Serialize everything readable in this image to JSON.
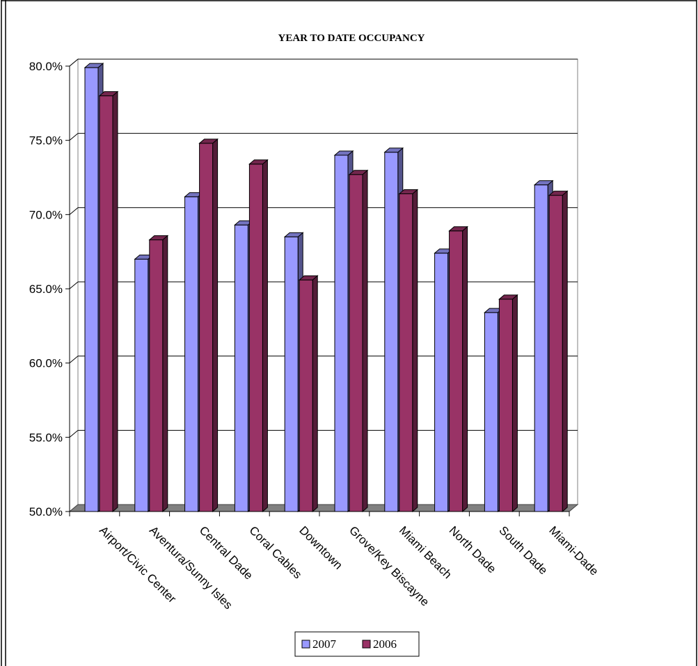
{
  "chart_data": {
    "type": "bar",
    "title": "YEAR TO DATE OCCUPANCY",
    "xlabel": "",
    "ylabel": "",
    "ylim": [
      0.5,
      0.8
    ],
    "yticks": [
      "50.0%",
      "55.0%",
      "60.0%",
      "65.0%",
      "70.0%",
      "75.0%",
      "80.0%"
    ],
    "categories": [
      "Airport/Civic Center",
      "Aventura/Sunny Isles",
      "Central Dade",
      "Coral Cables",
      "Downtown",
      "Grove/Key Biscayne",
      "Miami Beach",
      "North Dade",
      "South Dade",
      "Miami-Dade"
    ],
    "series": [
      {
        "name": "2007",
        "color": "#9999ff",
        "values": [
          0.799,
          0.67,
          0.712,
          0.693,
          0.685,
          0.74,
          0.742,
          0.674,
          0.634,
          0.72
        ]
      },
      {
        "name": "2006",
        "color": "#993366",
        "values": [
          0.78,
          0.683,
          0.748,
          0.734,
          0.656,
          0.727,
          0.714,
          0.689,
          0.643,
          0.713
        ]
      }
    ],
    "grid": true,
    "legend_position": "bottom",
    "colors": {
      "floor": "#808080",
      "gridline": "#000000",
      "frame": "#000000"
    }
  }
}
